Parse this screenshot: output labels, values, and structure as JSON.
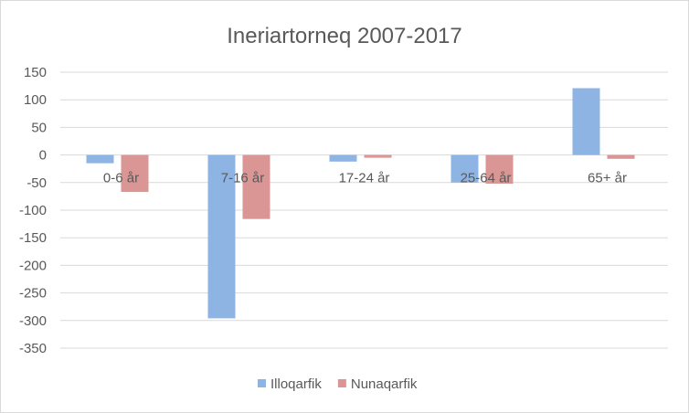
{
  "chart_data": {
    "type": "bar",
    "title": "Ineriartorneq 2007-2017",
    "categories": [
      "0-6 år",
      "7-16 år",
      "17-24 år",
      "25-64 år",
      "65+ år"
    ],
    "series": [
      {
        "name": "Illoqarfik",
        "color": "#8EB4E3",
        "values": [
          -15,
          -296,
          -12,
          -50,
          121
        ]
      },
      {
        "name": "Nunaqarfik",
        "color": "#D99694",
        "values": [
          -67,
          -116,
          -5,
          -52,
          -7
        ]
      }
    ],
    "ylim": [
      -350,
      150
    ],
    "yticks": [
      150,
      100,
      50,
      0,
      -50,
      -100,
      -150,
      -200,
      -250,
      -300,
      -350
    ],
    "grid": true,
    "legend": "bottom",
    "xlabel": "",
    "ylabel": ""
  }
}
